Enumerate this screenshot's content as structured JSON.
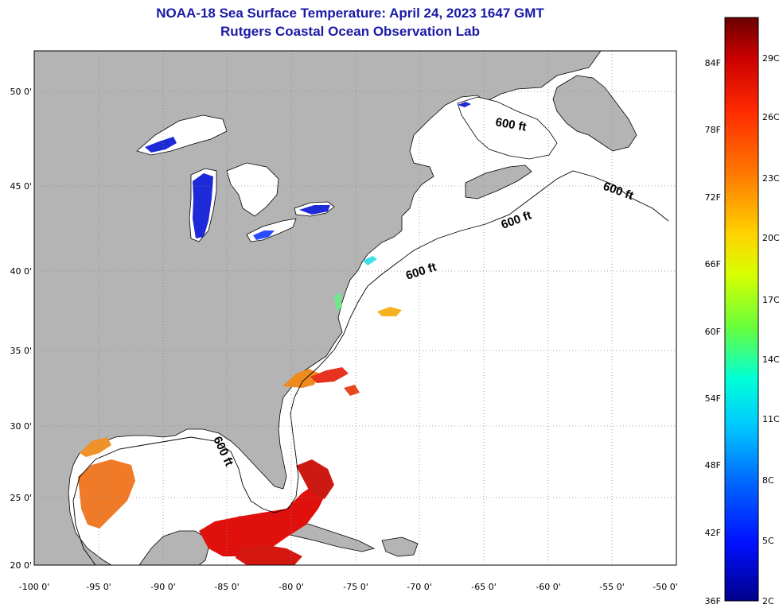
{
  "header": {
    "title": "NOAA-18 Sea Surface Temperature:  April 24, 2023 1647 GMT",
    "subtitle": "Rutgers Coastal Ocean Observation Lab"
  },
  "map": {
    "lon_range": [
      -100,
      -50
    ],
    "lat_range": [
      20,
      52.5
    ],
    "lon_ticks": [
      "-100 0'",
      "-95 0'",
      "-90 0'",
      "-85 0'",
      "-80 0'",
      "-75 0'",
      "-70 0'",
      "-65 0'",
      "-60 0'",
      "-55 0'",
      "-50 0'"
    ],
    "lat_ticks": [
      "50 0'",
      "45 0'",
      "40 0'",
      "35 0'",
      "30 0'",
      "25 0'",
      "20 0'"
    ],
    "contour_labels": [
      "600 ft",
      "600 ft",
      "600 ft",
      "600 ft",
      "600 ft"
    ],
    "land_color": "#b4b4b4",
    "water_color": "#ffffff"
  },
  "colorbar": {
    "fahrenheit_labels": [
      "84F",
      "78F",
      "72F",
      "66F",
      "60F",
      "54F",
      "48F",
      "42F",
      "36F"
    ],
    "celsius_labels": [
      "29C",
      "26C",
      "23C",
      "20C",
      "17C",
      "14C",
      "11C",
      "8C",
      "5C",
      "2C"
    ],
    "colors": [
      "#6a0000",
      "#cc0000",
      "#ff2a00",
      "#ff7a00",
      "#ffd200",
      "#d8ff00",
      "#6aff3a",
      "#00ffd8",
      "#00c8ff",
      "#0064ff",
      "#0010ff",
      "#00008a"
    ]
  }
}
